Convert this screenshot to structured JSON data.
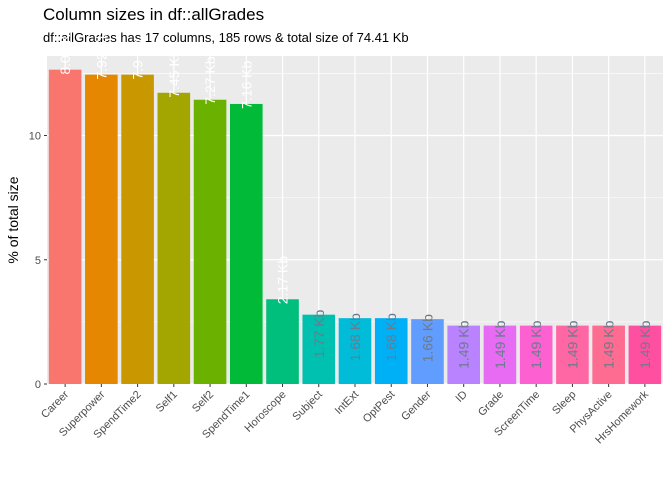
{
  "chart_data": {
    "type": "bar",
    "title": "Column sizes in df::allGrades",
    "subtitle": "df::allGrades has 17 columns, 185 rows & total size of 74.41 Kb",
    "xlabel": "",
    "ylabel": "% of total size",
    "ylim": [
      0,
      13.2
    ],
    "yticks": [
      0,
      5,
      10
    ],
    "grid": true,
    "legend": "none",
    "categories": [
      "Career",
      "Superpower",
      "SpendTime2",
      "Self1",
      "Self2",
      "SpendTime1",
      "Horoscope",
      "Subject",
      "IntExt",
      "OptPest",
      "Gender",
      "ID",
      "Grade",
      "ScreenTime",
      "Sleep",
      "PhysActive",
      "HrsHomework"
    ],
    "values": [
      12.65,
      12.45,
      12.45,
      11.72,
      11.44,
      11.27,
      3.41,
      2.79,
      2.65,
      2.65,
      2.61,
      2.35,
      2.35,
      2.35,
      2.35,
      2.35,
      2.35
    ],
    "labels": [
      "8.04 Kb",
      "7.92 Kb",
      "7.9 Kb",
      "7.45 Kb",
      "7.27 Kb",
      "7.16 Kb",
      "2.17 Kb",
      "1.77 Kb",
      "1.68 Kb",
      "1.68 Kb",
      "1.66 Kb",
      "1.49 Kb",
      "1.49 Kb",
      "1.49 Kb",
      "1.49 Kb",
      "1.49 Kb",
      "1.49 Kb"
    ],
    "colors": [
      "#F8766D",
      "#E58700",
      "#C99800",
      "#A3A500",
      "#6BB100",
      "#00BA38",
      "#00BF7D",
      "#00C0AF",
      "#00BCD8",
      "#00B0F6",
      "#619CFF",
      "#B983FF",
      "#E76BF3",
      "#FD61D1",
      "#FF67A4",
      "#FF6C91",
      "#FF4FA0"
    ],
    "label_color_inside": "#ffffff",
    "label_color_outside": "#6b7b8c",
    "panel_background": "#EBEBEB",
    "grid_color": "#ffffff"
  }
}
